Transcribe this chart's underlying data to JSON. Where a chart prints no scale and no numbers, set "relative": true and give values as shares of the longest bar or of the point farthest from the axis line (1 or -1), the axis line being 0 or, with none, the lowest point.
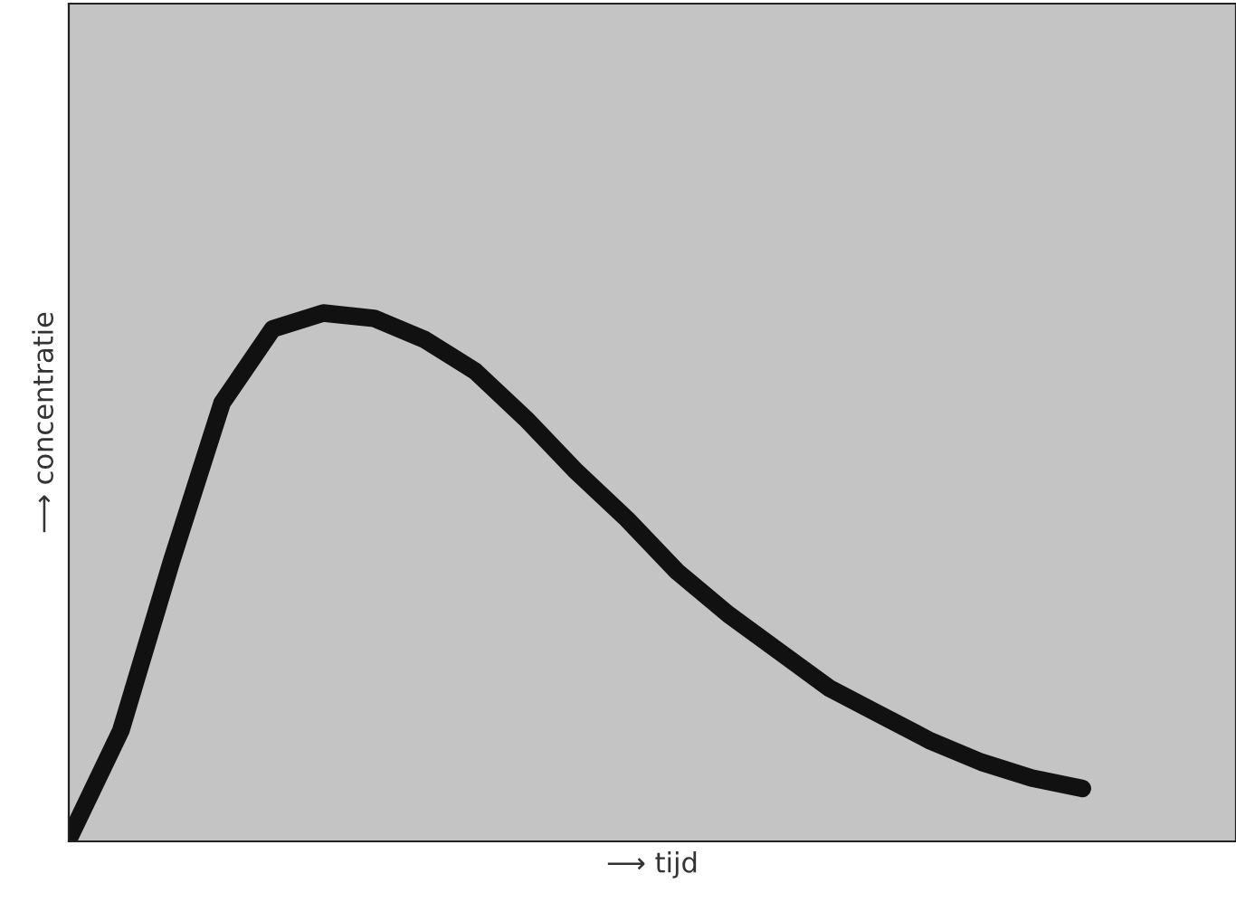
{
  "chart_data": {
    "type": "line",
    "relative": true,
    "xlabel": "⟶ tijd",
    "ylabel": "⟶ concentratie",
    "categories": [
      null,
      null,
      null,
      null,
      null,
      null,
      null,
      null,
      null,
      null,
      null,
      null,
      null,
      null,
      null,
      null,
      null,
      null,
      null,
      null,
      null
    ],
    "series": [
      {
        "color": "#111111",
        "values": [
          0.01,
          0.21,
          0.53,
          0.83,
          0.97,
          1,
          0.99,
          0.95,
          0.89,
          0.8,
          0.7,
          0.61,
          0.51,
          0.43,
          0.36,
          0.29,
          0.24,
          0.19,
          0.15,
          0.12,
          0.1
        ]
      }
    ],
    "marker": "none",
    "line_style": "solid"
  }
}
